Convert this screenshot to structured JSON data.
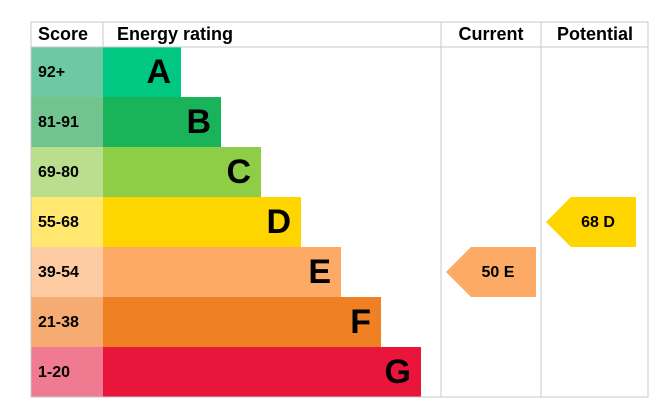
{
  "header": {
    "score": "Score",
    "rating": "Energy rating",
    "current": "Current",
    "potential": "Potential"
  },
  "bands": [
    {
      "score": "92+",
      "letter": "A",
      "color": "#00c781",
      "score_color": "#6cc9a1"
    },
    {
      "score": "81-91",
      "letter": "B",
      "color": "#19b459",
      "score_color": "#71c48d"
    },
    {
      "score": "69-80",
      "letter": "C",
      "color": "#8dce46",
      "score_color": "#b8de8e"
    },
    {
      "score": "55-68",
      "letter": "D",
      "color": "#ffd500",
      "score_color": "#ffe770"
    },
    {
      "score": "39-54",
      "letter": "E",
      "color": "#fcaa65",
      "score_color": "#fdcca2"
    },
    {
      "score": "21-38",
      "letter": "F",
      "color": "#ef8023",
      "score_color": "#f5ab72"
    },
    {
      "score": "1-20",
      "letter": "G",
      "color": "#e9153b",
      "score_color": "#f07a8f"
    }
  ],
  "current": {
    "value": 50,
    "label": "50 E"
  },
  "potential": {
    "value": 68,
    "label": "68 D"
  }
}
